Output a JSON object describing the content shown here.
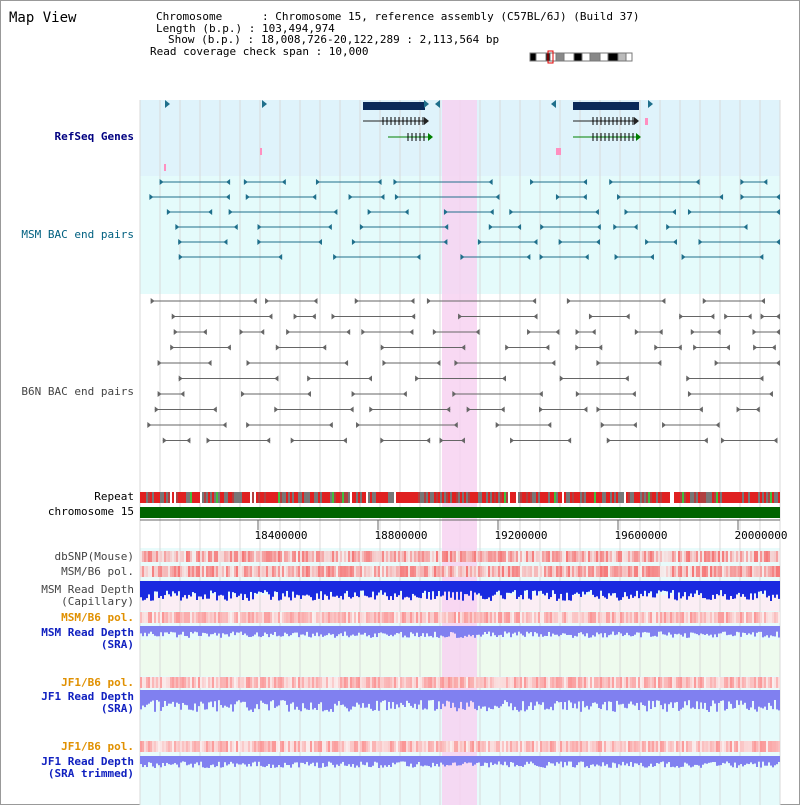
{
  "title": "Map View",
  "info": {
    "chromosome": "Chromosome      : Chromosome 15, reference assembly (C57BL/6J) (Build 37)",
    "length": "Length (b.p.) : 103,494,974",
    "show": "Show (b.p.) : 18,008,726-20,122,289 : 2,113,564 bp",
    "read_coverage": "Read coverage check span : 10,000"
  },
  "tracks": {
    "refseq": "RefSeq Genes",
    "msm_bac": "MSM BAC end pairs",
    "b6n_bac": "B6N BAC end pairs",
    "repeat": "Repeat",
    "chromosome": "chromosome 15",
    "dbsnp": "dbSNP(Mouse)",
    "msm_b6_pol_1": "MSM/B6 pol.",
    "msm_read_depth_cap": "MSM Read Depth\n(Capillary)",
    "msm_b6_pol_2": "MSM/B6 pol.",
    "msm_read_depth_sra": "MSM Read Depth\n(SRA)",
    "jf1_b6_pol_1": "JF1/B6 pol.",
    "jf1_read_depth_sra": "JF1 Read Depth\n(SRA)",
    "jf1_b6_pol_2": "JF1/B6 pol.",
    "jf1_read_depth_trim": "JF1 Read Depth\n(SRA trimmed)"
  },
  "axis_ticks": [
    "18400000",
    "18800000",
    "19200000",
    "19600000",
    "20000000"
  ],
  "colors": {
    "refseq_bg": "#dff3fb",
    "msm_bac_bg": "#e4fbfb",
    "highlight": "#f7d2f1",
    "gene": "#0a2a5a",
    "msm_pair": "#1f6f8b",
    "b6n_pair": "#666666",
    "chromosome": "#006400",
    "depth_blue": "#1a2ae0",
    "depth_light": "#8080f0"
  }
}
